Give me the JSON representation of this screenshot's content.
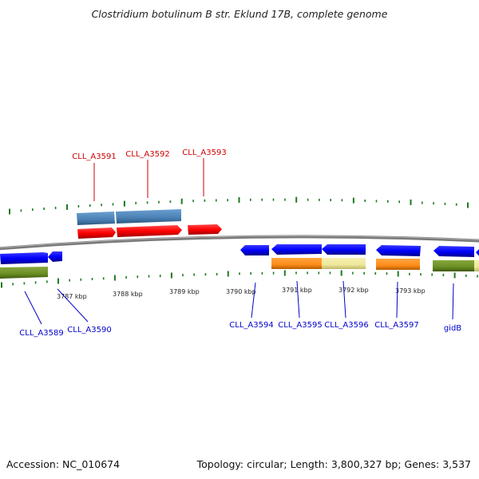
{
  "title": "Clostridium botulinum B str. Eklund 17B, complete genome",
  "footer": {
    "accession": "Accession: NC_010674",
    "summary": "Topology: circular; Length: 3,800,327 bp; Genes: 3,537"
  },
  "colors": {
    "backbone": "#808080",
    "tick": "#1f7a1f",
    "forward_label": "#cc0000",
    "reverse_label": "#0000cc",
    "forward_gene": "#ff0000",
    "reverse_gene": "#0000ff",
    "steelblue_track": "#4f86b8",
    "orange_track": "#ff8c1a",
    "khaki_track": "#efe79a",
    "olive_track": "#6b8e23"
  },
  "kbp_ticks": [
    {
      "label": "3787 kbp"
    },
    {
      "label": "3788 kbp"
    },
    {
      "label": "3789 kbp"
    },
    {
      "label": "3790 kbp"
    },
    {
      "label": "3791 kbp"
    },
    {
      "label": "3792 kbp"
    },
    {
      "label": "3793 kbp"
    }
  ],
  "forward_labels": [
    {
      "name": "CLL_A3591"
    },
    {
      "name": "CLL_A3592"
    },
    {
      "name": "CLL_A3593"
    }
  ],
  "reverse_labels": [
    {
      "name": "CLL_A3589"
    },
    {
      "name": "CLL_A3590"
    },
    {
      "name": "CLL_A3594"
    },
    {
      "name": "CLL_A3595"
    },
    {
      "name": "CLL_A3596"
    },
    {
      "name": "CLL_A3597"
    },
    {
      "name": "gidB"
    }
  ]
}
